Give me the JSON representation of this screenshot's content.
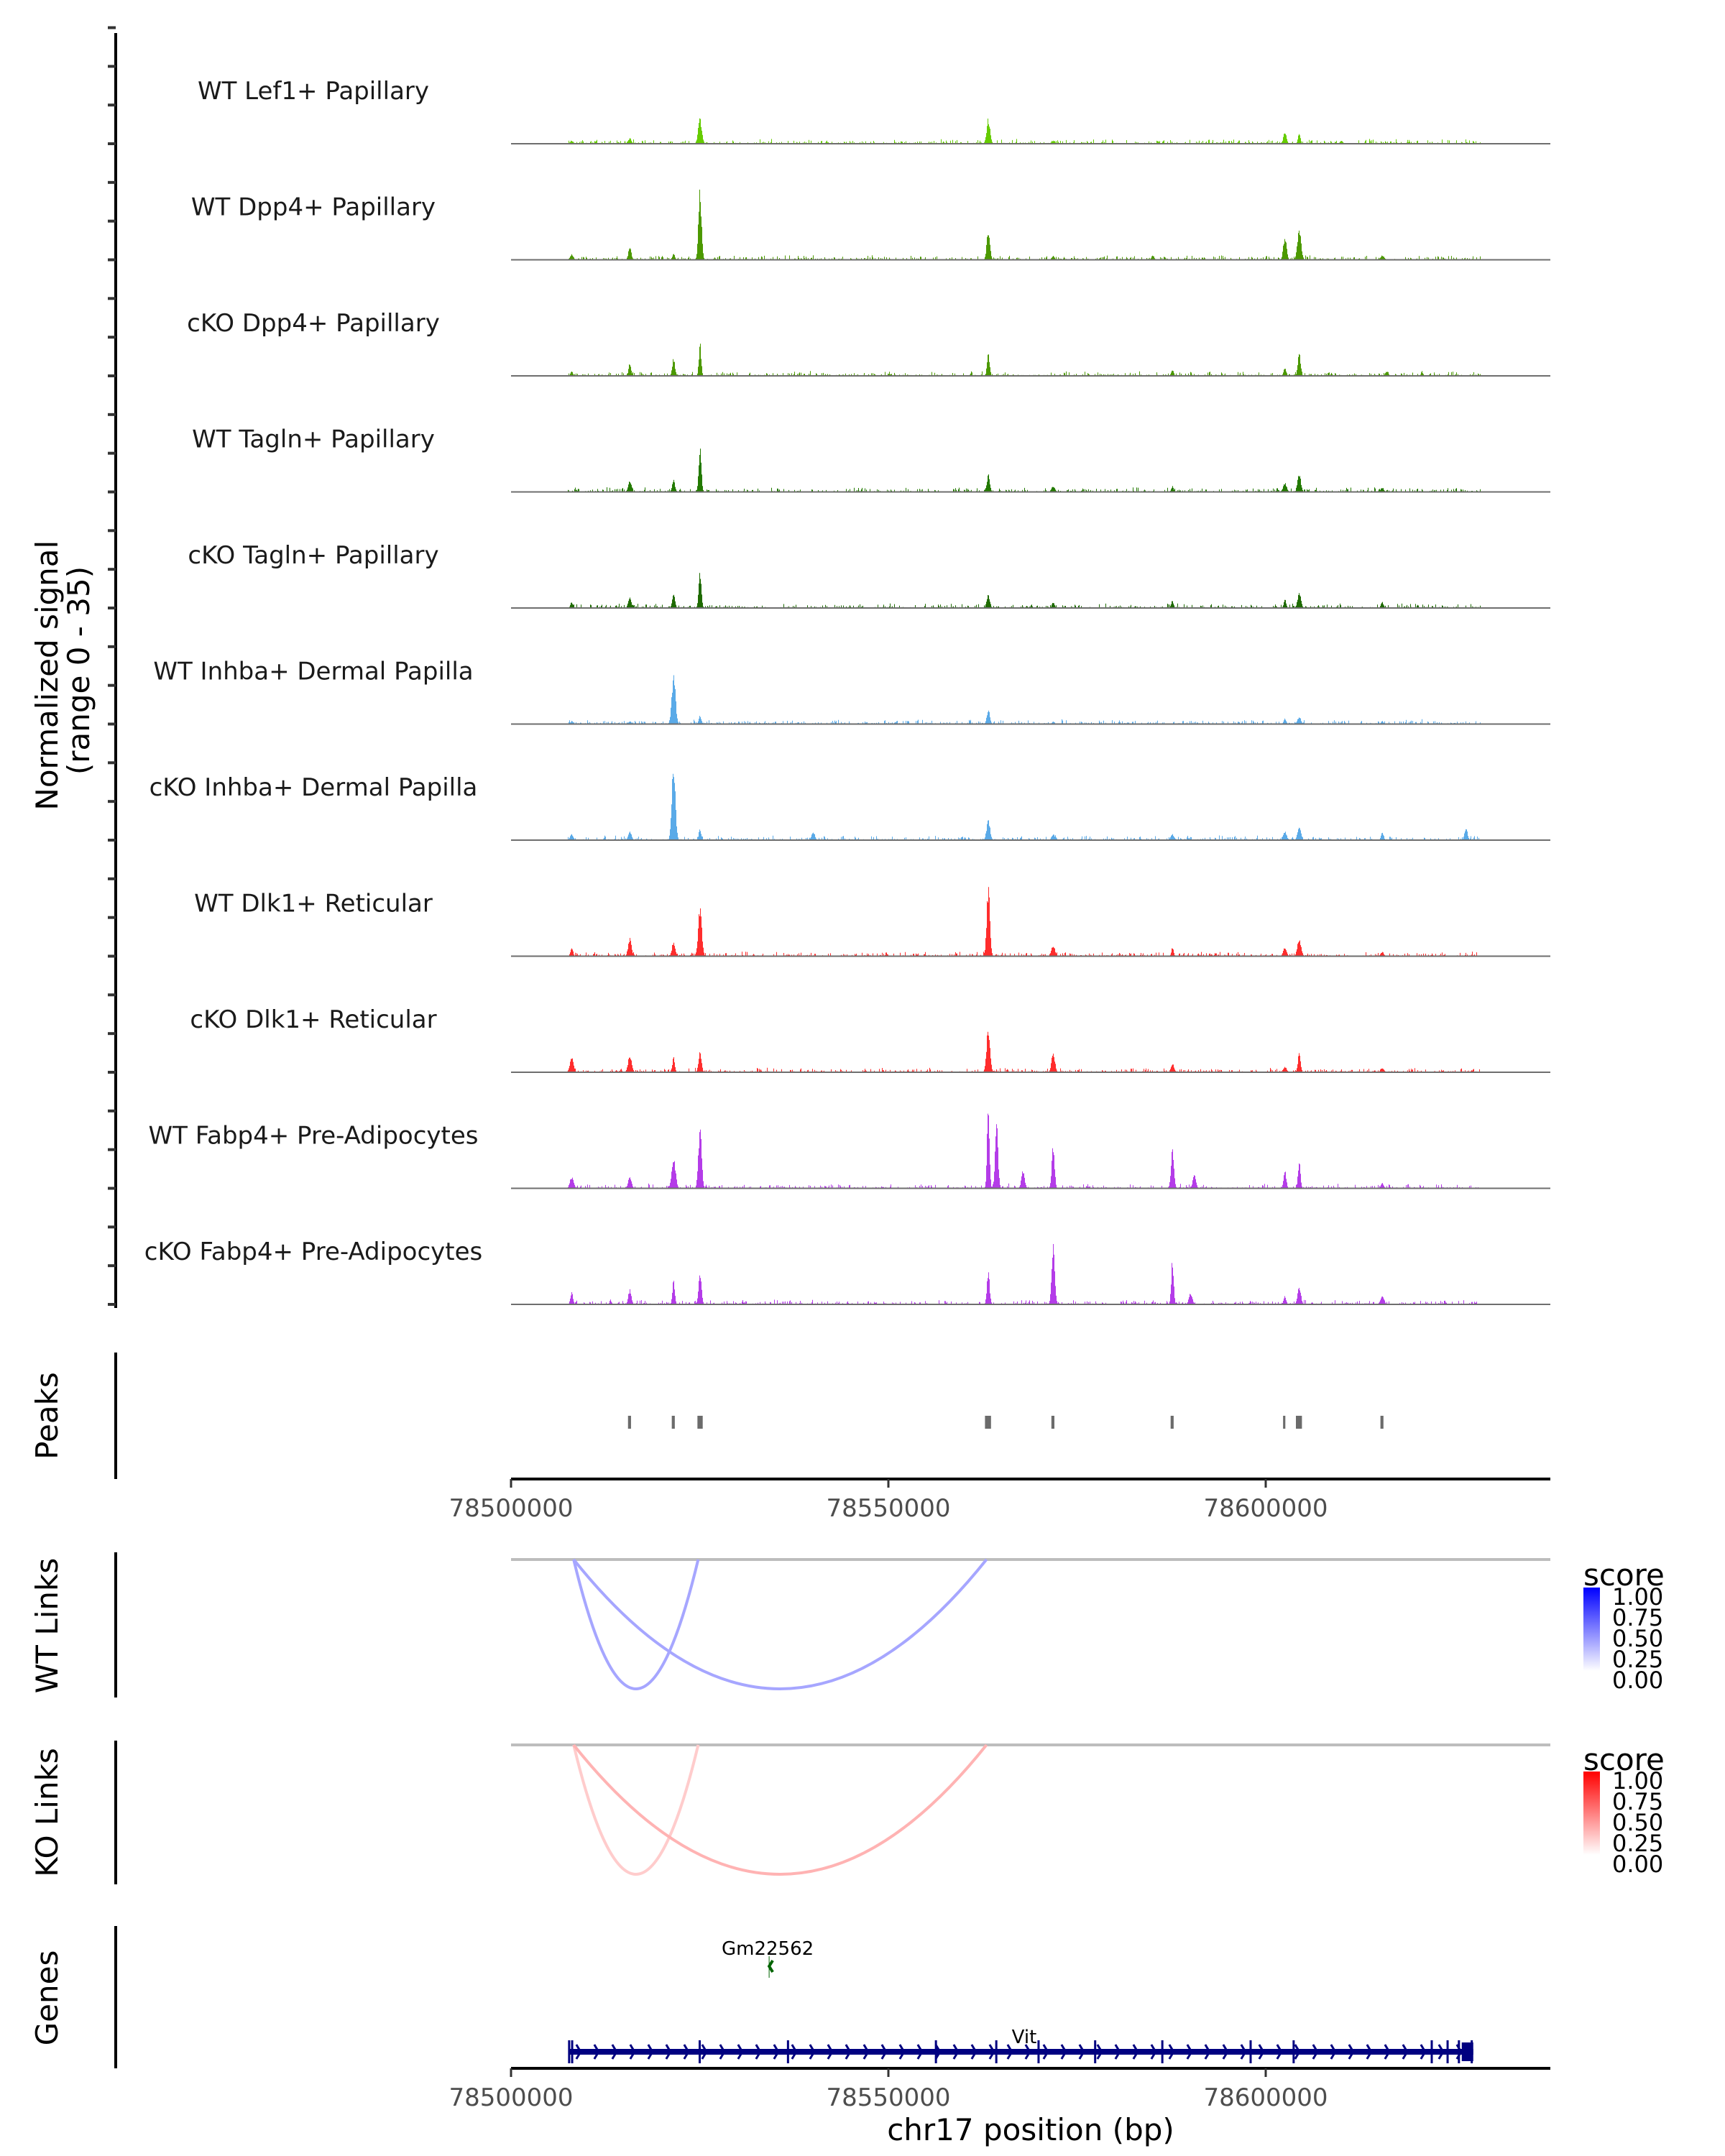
{
  "chart_data": {
    "type": "area",
    "title": "",
    "xlabel": "chr17 position (bp)",
    "ylabel": "Normalized signal\n(range 0 - 35)",
    "ylabel_line1": "Normalized signal",
    "ylabel_line2": "(range 0 - 35)",
    "ylim": [
      0,
      35
    ],
    "xlim": [
      78500000,
      78637700
    ],
    "x_ticks": [
      78500000,
      78550000,
      78600000
    ],
    "x_tick_labels": [
      "78500000",
      "78550000",
      "78600000"
    ],
    "tracks": [
      {
        "name": "WT Lef1+ Papillary",
        "color": "#66cc00",
        "peaks": [
          [
            78508000,
            1
          ],
          [
            78515700,
            2
          ],
          [
            78525000,
            8.5
          ],
          [
            78563200,
            8.5
          ],
          [
            78571800,
            1
          ],
          [
            78602500,
            4
          ],
          [
            78604400,
            3.5
          ],
          [
            78610000,
            1
          ]
        ]
      },
      {
        "name": "WT Dpp4+ Papillary",
        "color": "#4c9900",
        "peaks": [
          [
            78508000,
            2
          ],
          [
            78515700,
            4.5
          ],
          [
            78521500,
            2
          ],
          [
            78525000,
            24
          ],
          [
            78563200,
            10
          ],
          [
            78571800,
            1.5
          ],
          [
            78585000,
            1.5
          ],
          [
            78602500,
            8
          ],
          [
            78604400,
            10
          ],
          [
            78615400,
            1.5
          ]
        ]
      },
      {
        "name": "cKO Dpp4+ Papillary",
        "color": "#4c9900",
        "peaks": [
          [
            78508000,
            1.5
          ],
          [
            78515700,
            4.5
          ],
          [
            78521500,
            6
          ],
          [
            78525000,
            11
          ],
          [
            78563200,
            8
          ],
          [
            78587600,
            2
          ],
          [
            78602500,
            3
          ],
          [
            78604400,
            7.5
          ],
          [
            78616000,
            1.5
          ]
        ]
      },
      {
        "name": "WT Tagln+ Papillary",
        "color": "#237a00",
        "peaks": [
          [
            78515700,
            4
          ],
          [
            78521500,
            4
          ],
          [
            78525000,
            16
          ],
          [
            78563200,
            6
          ],
          [
            78571800,
            2
          ],
          [
            78587600,
            2
          ],
          [
            78602500,
            3
          ],
          [
            78604400,
            6.5
          ],
          [
            78615400,
            1.5
          ]
        ]
      },
      {
        "name": "cKO Tagln+ Papillary",
        "color": "#1f6b00",
        "peaks": [
          [
            78508000,
            2
          ],
          [
            78515700,
            4
          ],
          [
            78521500,
            5
          ],
          [
            78525000,
            13
          ],
          [
            78563200,
            4.5
          ],
          [
            78571800,
            2
          ],
          [
            78587600,
            2.5
          ],
          [
            78602500,
            3
          ],
          [
            78604400,
            5
          ],
          [
            78615400,
            2
          ]
        ]
      },
      {
        "name": "WT Inhba+ Dermal Papilla",
        "color": "#5aaae8",
        "peaks": [
          [
            78508000,
            1
          ],
          [
            78515700,
            1
          ],
          [
            78521500,
            17
          ],
          [
            78525000,
            3
          ],
          [
            78563200,
            5
          ],
          [
            78571800,
            1
          ],
          [
            78602500,
            2
          ],
          [
            78604400,
            2.5
          ],
          [
            78615400,
            1
          ]
        ]
      },
      {
        "name": "cKO Inhba+ Dermal Papilla",
        "color": "#5aaae8",
        "peaks": [
          [
            78508000,
            2
          ],
          [
            78515700,
            3
          ],
          [
            78521500,
            27
          ],
          [
            78525000,
            4
          ],
          [
            78540000,
            3
          ],
          [
            78563200,
            7
          ],
          [
            78571800,
            2
          ],
          [
            78587600,
            2
          ],
          [
            78602500,
            3
          ],
          [
            78604400,
            4.5
          ],
          [
            78615400,
            3
          ],
          [
            78626500,
            4
          ]
        ]
      },
      {
        "name": "WT Dlk1+ Reticular",
        "color": "#ff2d2d",
        "peaks": [
          [
            78508000,
            3
          ],
          [
            78515700,
            6
          ],
          [
            78521500,
            5
          ],
          [
            78525000,
            17
          ],
          [
            78563200,
            24
          ],
          [
            78571800,
            4
          ],
          [
            78587600,
            3
          ],
          [
            78602500,
            3
          ],
          [
            78604400,
            6
          ],
          [
            78615400,
            1.5
          ]
        ]
      },
      {
        "name": "cKO Dlk1+ Reticular",
        "color": "#ff2d2d",
        "peaks": [
          [
            78508000,
            5
          ],
          [
            78515700,
            6
          ],
          [
            78521500,
            5
          ],
          [
            78525000,
            7
          ],
          [
            78563200,
            16
          ],
          [
            78571800,
            7
          ],
          [
            78587600,
            3
          ],
          [
            78602500,
            2
          ],
          [
            78604400,
            6.5
          ],
          [
            78615400,
            1.5
          ]
        ]
      },
      {
        "name": "WT Fabp4+ Pre-Adipocytes",
        "color": "#b43ce8",
        "peaks": [
          [
            78508000,
            4
          ],
          [
            78515700,
            4
          ],
          [
            78521500,
            11
          ],
          [
            78525000,
            21
          ],
          [
            78563200,
            31
          ],
          [
            78564300,
            22
          ],
          [
            78567800,
            6
          ],
          [
            78571800,
            15
          ],
          [
            78587600,
            13
          ],
          [
            78590500,
            5
          ],
          [
            78602500,
            6
          ],
          [
            78604400,
            9
          ],
          [
            78615400,
            2
          ]
        ]
      },
      {
        "name": "cKO Fabp4+ Pre-Adipocytes",
        "color": "#b43ce8",
        "peaks": [
          [
            78508000,
            4
          ],
          [
            78515700,
            5
          ],
          [
            78521500,
            8
          ],
          [
            78525000,
            11
          ],
          [
            78563200,
            11
          ],
          [
            78571800,
            20
          ],
          [
            78587600,
            16
          ],
          [
            78590000,
            4
          ],
          [
            78602500,
            3
          ],
          [
            78604400,
            6
          ],
          [
            78615400,
            3
          ]
        ]
      }
    ],
    "peaks_track": {
      "label": "Peaks",
      "regions": [
        [
          78515500,
          78515900
        ],
        [
          78521300,
          78521700
        ],
        [
          78524700,
          78525400
        ],
        [
          78562800,
          78563600
        ],
        [
          78571600,
          78572000
        ],
        [
          78587400,
          78587800
        ],
        [
          78602300,
          78602600
        ],
        [
          78604000,
          78604800
        ],
        [
          78615200,
          78615600
        ]
      ],
      "color": "#6b6b6b"
    },
    "links": [
      {
        "panel": "WT Links",
        "color_scale": [
          "#ffffff",
          "#0000ff"
        ],
        "items": [
          {
            "start": 78508300,
            "end": 78524800,
            "score": 0.35
          },
          {
            "start": 78508300,
            "end": 78563000,
            "score": 0.35
          }
        ]
      },
      {
        "panel": "KO Links",
        "color_scale": [
          "#ffffff",
          "#ff0000"
        ],
        "items": [
          {
            "start": 78508300,
            "end": 78524800,
            "score": 0.2
          },
          {
            "start": 78508300,
            "end": 78563000,
            "score": 0.3
          }
        ]
      }
    ],
    "legend": {
      "title": "score",
      "ticks": [
        "1.00",
        "0.75",
        "0.50",
        "0.25",
        "0.00"
      ],
      "placement": "right"
    },
    "genes": [
      {
        "name": "Gm22562",
        "start": 78534200,
        "end": 78534400,
        "strand": "-",
        "color": "#006400"
      },
      {
        "name": "Vit",
        "start": 78507700,
        "end": 78627500,
        "strand": "+",
        "color": "#000080"
      }
    ]
  },
  "panels": {
    "peaks_label": "Peaks",
    "wt_links_label": "WT Links",
    "ko_links_label": "KO Links",
    "genes_label": "Genes"
  }
}
